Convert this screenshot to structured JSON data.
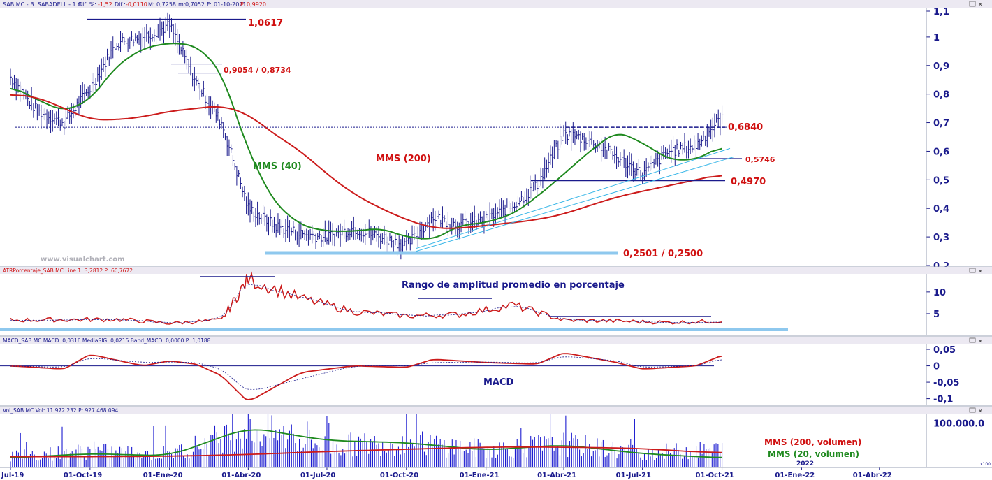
{
  "colors": {
    "panel_border": "#9aa0b4",
    "header_bg": "#ece9f2",
    "header_text": "#1a1a8c",
    "header_price": "#d01010",
    "axis_text": "#1a1a8c",
    "bars": "#1a1a8c",
    "sma40": "#1f8a1f",
    "sma200": "#cc1b1b",
    "annotation_red": "#d01010",
    "annotation_green": "#1f8a1f",
    "annotation_navy": "#1a1a8c",
    "line_navy": "#1a1a8c",
    "highlight_blue": "#8ec8ee",
    "channel": "#3ab7e8",
    "watermark": "#b0b0b8",
    "volume_bars": "#1c1cd0"
  },
  "panels": {
    "price": {
      "header": {
        "symbol": "SAB.MC - B. SABADELL - 1 d",
        "dif_label": "Dif. %:",
        "dif_value": "-1,52",
        "dif2_label": "Dif.:",
        "dif2_value": "-0,0110",
        "m_label": "M:",
        "m_value": "0,7258",
        "min_label": "m:",
        "min_value": "0,7052",
        "date_label": "F:",
        "date_value": "01-10-2021",
        "price_label": "P:",
        "price_value": "0,9920"
      },
      "yticks": [
        "1,1",
        "1",
        "0,9",
        "0,8",
        "0,7",
        "0,6",
        "0,5",
        "0,4",
        "0,3",
        "0,2"
      ],
      "watermark": "www.visualchart.com",
      "annotations": {
        "high": "1,0617",
        "retrace": "0,9054 / 0,8734",
        "sma40": "MMS (40)",
        "sma200": "MMS (200)",
        "resist": "0,6840",
        "channel_level": "0,5746",
        "support": "0,4970",
        "low": "0,2501 / 0,2500"
      }
    },
    "atr": {
      "header": "ATRPorcentaje_SAB.MC Line 1: 3,2812 P: 60,7672",
      "yticks": [
        "10",
        "5"
      ],
      "annotation": "Rango de amplitud promedio en porcentaje"
    },
    "macd": {
      "header": "MACD_SAB.MC MACD: 0,0316 MediaSIG: 0,0215 Band_MACD: 0,0000 P: 1,0188",
      "yticks": [
        "0,05",
        "0",
        "-0,05",
        "-0,1"
      ],
      "annotation": "MACD"
    },
    "volume": {
      "header": "Vol_SAB.MC Vol: 11.972.232 P: 927.468.094",
      "yticks": [
        "100.000.0"
      ],
      "axis_unit": "x100",
      "annotations": {
        "sma200": "MMS (200, volumen)",
        "sma20": "MMS (20, volumen)"
      },
      "year_label": "2022"
    }
  },
  "x_axis": [
    "Jul-19",
    "01-Oct-19",
    "01-Ene-20",
    "01-Abr-20",
    "01-Jul-20",
    "01-Oct-20",
    "01-Ene-21",
    "01-Abr-21",
    "01-Jul-21",
    "01-Oct-21",
    "01-Ene-22",
    "01-Abr-22"
  ],
  "chart_data": [
    {
      "type": "line",
      "title": "SAB.MC - B. SABADELL - 1 d",
      "x": [
        "2019-07-01",
        "2019-08-01",
        "2019-09-01",
        "2019-10-01",
        "2019-11-01",
        "2019-12-01",
        "2020-01-01",
        "2020-02-01",
        "2020-03-01",
        "2020-04-01",
        "2020-05-01",
        "2020-06-01",
        "2020-07-01",
        "2020-08-01",
        "2020-09-01",
        "2020-10-01",
        "2020-11-01",
        "2020-12-01",
        "2021-01-01",
        "2021-02-01",
        "2021-03-01",
        "2021-04-01",
        "2021-05-01",
        "2021-06-01",
        "2021-07-01",
        "2021-08-01",
        "2021-09-01",
        "2021-10-01"
      ],
      "series": [
        {
          "name": "SAB.MC",
          "values": [
            0.86,
            0.74,
            0.7,
            0.82,
            0.98,
            1.0,
            1.04,
            0.84,
            0.7,
            0.4,
            0.34,
            0.31,
            0.3,
            0.33,
            0.3,
            0.27,
            0.37,
            0.34,
            0.36,
            0.41,
            0.48,
            0.66,
            0.64,
            0.58,
            0.52,
            0.6,
            0.62,
            0.72
          ]
        },
        {
          "name": "MMS (40)",
          "values": [
            0.83,
            0.78,
            0.74,
            0.78,
            0.9,
            0.96,
            0.98,
            0.97,
            0.88,
            0.6,
            0.42,
            0.34,
            0.32,
            0.32,
            0.33,
            0.3,
            0.29,
            0.34,
            0.35,
            0.38,
            0.44,
            0.52,
            0.6,
            0.67,
            0.63,
            0.57,
            0.57,
            0.62
          ]
        },
        {
          "name": "MMS (200)",
          "values": [
            0.8,
            0.79,
            0.75,
            0.71,
            0.71,
            0.72,
            0.74,
            0.75,
            0.76,
            0.73,
            0.66,
            0.6,
            0.52,
            0.45,
            0.4,
            0.36,
            0.33,
            0.33,
            0.34,
            0.35,
            0.36,
            0.38,
            0.41,
            0.44,
            0.46,
            0.48,
            0.5,
            0.52
          ]
        }
      ],
      "xlabel": "",
      "ylabel": "",
      "ylim": [
        0.2,
        1.1
      ],
      "grid": false
    },
    {
      "type": "line",
      "title": "ATRPorcentaje_SAB.MC",
      "x": [
        "2019-07-01",
        "2019-09-01",
        "2019-11-01",
        "2020-01-01",
        "2020-03-01",
        "2020-04-01",
        "2020-06-01",
        "2020-08-01",
        "2020-10-01",
        "2020-12-01",
        "2021-02-01",
        "2021-04-01",
        "2021-06-01",
        "2021-08-01",
        "2021-10-01"
      ],
      "series": [
        {
          "name": "ATRPorcentaje_SAB.MC",
          "values": [
            3.5,
            3.6,
            3.7,
            2.8,
            3.5,
            13.0,
            8.5,
            5.5,
            4.5,
            4.8,
            7.0,
            3.5,
            3.3,
            3.0,
            3.28
          ]
        }
      ],
      "ylim": [
        0,
        14
      ]
    },
    {
      "type": "line",
      "title": "MACD_SAB.MC",
      "x": [
        "2019-07-01",
        "2019-09-01",
        "2019-10-01",
        "2019-12-01",
        "2020-01-01",
        "2020-02-01",
        "2020-03-01",
        "2020-04-01",
        "2020-06-01",
        "2020-08-01",
        "2020-10-01",
        "2020-11-01",
        "2021-01-01",
        "2021-03-01",
        "2021-04-01",
        "2021-06-01",
        "2021-07-01",
        "2021-09-01",
        "2021-10-01"
      ],
      "series": [
        {
          "name": "MACD",
          "values": [
            0.0,
            -0.01,
            0.035,
            0.0,
            0.015,
            0.005,
            -0.03,
            -0.11,
            -0.02,
            0.0,
            -0.005,
            0.02,
            0.01,
            0.005,
            0.04,
            0.01,
            -0.01,
            0.0,
            0.0316
          ]
        },
        {
          "name": "MediaSIG",
          "values": [
            0.0,
            -0.005,
            0.025,
            0.01,
            0.012,
            0.01,
            -0.01,
            -0.08,
            -0.04,
            0.0,
            0.0,
            0.01,
            0.012,
            0.008,
            0.03,
            0.015,
            -0.005,
            0.0,
            0.0215
          ]
        }
      ],
      "ylim": [
        -0.12,
        0.06
      ]
    },
    {
      "type": "bar",
      "title": "Vol_SAB.MC",
      "x": [
        "2019-07-01",
        "2019-10-01",
        "2020-01-01",
        "2020-04-01",
        "2020-07-01",
        "2020-10-01",
        "2021-01-01",
        "2021-04-01",
        "2021-07-01",
        "2021-10-01"
      ],
      "series": [
        {
          "name": "Vol_SAB.MC",
          "values": [
            300,
            450,
            350,
            1100,
            600,
            700,
            500,
            650,
            400,
            500
          ]
        },
        {
          "name": "MMS (20, volumen)",
          "values": [
            200,
            300,
            250,
            900,
            600,
            550,
            380,
            500,
            300,
            200
          ]
        },
        {
          "name": "MMS (200, volumen)",
          "values": [
            230,
            230,
            240,
            280,
            350,
            400,
            450,
            450,
            420,
            300
          ]
        }
      ],
      "ylim": [
        0,
        1200
      ]
    }
  ]
}
